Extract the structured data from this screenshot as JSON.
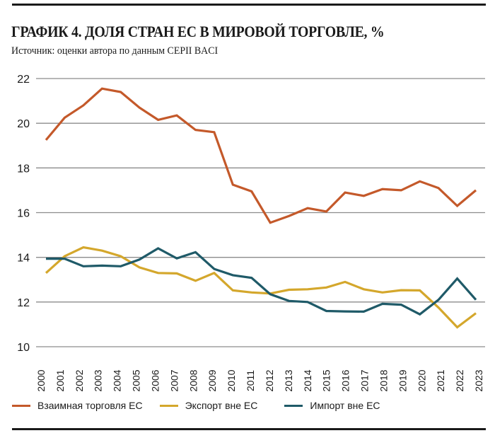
{
  "header": {
    "title": "ГРАФИК 4. ДОЛЯ СТРАН ЕС В МИРОВОЙ ТОРГОВЛЕ, %",
    "subtitle": "Источник: оценки автора по данным CEPII BACI"
  },
  "chart_data": {
    "type": "line",
    "title": "ГРАФИК 4. ДОЛЯ СТРАН ЕС В МИРОВОЙ ТОРГОВЛЕ, %",
    "subtitle": "Источник: оценки автора по данным CEPII BACI",
    "xlabel": "",
    "ylabel": "",
    "ylim": [
      10,
      22
    ],
    "yticks": [
      "10",
      "12",
      "14",
      "16",
      "18",
      "20",
      "22"
    ],
    "grid": true,
    "legend_position": "bottom-left",
    "x": [
      "2000",
      "2001",
      "2002",
      "2003",
      "2004",
      "2005",
      "2006",
      "2007",
      "2008",
      "2009",
      "2010",
      "2011",
      "2012",
      "2013",
      "2014",
      "2015",
      "2016",
      "2017",
      "2018",
      "2019",
      "2020",
      "2021",
      "2022",
      "2023"
    ],
    "series": [
      {
        "name": "Взаимная торговля ЕС",
        "color": "#c4592a",
        "values": [
          19.25,
          20.25,
          20.8,
          21.55,
          21.4,
          20.7,
          20.15,
          20.35,
          19.7,
          19.6,
          17.25,
          16.95,
          15.55,
          15.85,
          16.2,
          16.05,
          16.9,
          16.75,
          17.05,
          17.0,
          17.4,
          17.1,
          16.3,
          17.0
        ]
      },
      {
        "name": "Экспорт вне ЕС",
        "color": "#d4a72c",
        "values": [
          13.3,
          14.05,
          14.45,
          14.3,
          14.05,
          13.55,
          13.3,
          13.28,
          12.95,
          13.3,
          12.52,
          12.43,
          12.38,
          12.55,
          12.57,
          12.65,
          12.9,
          12.57,
          12.43,
          12.53,
          12.52,
          11.75,
          10.87,
          11.5
        ]
      },
      {
        "name": "Импорт вне ЕС",
        "color": "#1f5a68",
        "values": [
          13.94,
          13.94,
          13.6,
          13.63,
          13.6,
          13.9,
          14.4,
          13.95,
          14.23,
          13.48,
          13.2,
          13.08,
          12.35,
          12.05,
          12.0,
          11.6,
          11.58,
          11.57,
          11.92,
          11.88,
          11.45,
          12.1,
          13.05,
          12.1
        ]
      }
    ]
  }
}
